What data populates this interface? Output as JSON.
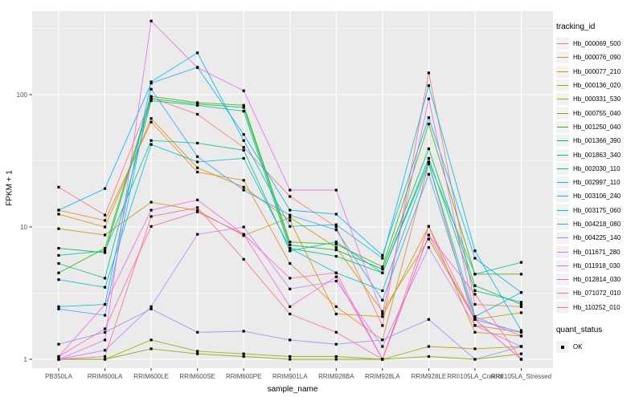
{
  "figure": {
    "y_axis": {
      "label": "FPKM + 1",
      "tick_labels": [
        "1",
        "10",
        "100"
      ]
    },
    "x_axis": {
      "label": "sample_name"
    },
    "legend": {
      "tracking_title": "tracking_id",
      "quant_title": "quant_status",
      "quant_value": "OK"
    },
    "colors": {
      "panel_bg": "#EBEBEB",
      "grid": "#FFFFFF",
      "key_bg": "#F2F2F2",
      "axis_text": "#4D4D4D",
      "tick_mark": "#333333",
      "point": "#000000"
    }
  },
  "chart_data": {
    "type": "line",
    "title": "",
    "xlabel": "sample_name",
    "ylabel": "FPKM + 1",
    "y_scale": "log10",
    "ylim": [
      1,
      400
    ],
    "y_ticks": [
      1,
      10,
      100
    ],
    "grid": "on",
    "legend_position": "right",
    "point_marker": "black-square",
    "quant_status": "OK",
    "categories": [
      "PB350LA",
      "RRIM600LA",
      "RRIM600LE",
      "RRIM600SE",
      "RRIM600PE",
      "RRIM901LA",
      "RRIM928BA",
      "RRIM928LA",
      "RRIM928LE",
      "RRII105LA_Control",
      "RRII105LA_Stressed"
    ],
    "series": [
      {
        "name": "Hb_000069_500",
        "color": "#F8766D",
        "values": [
          20,
          12.3,
          95,
          71,
          40,
          17,
          10,
          1.8,
          146,
          2.6,
          2.5
        ]
      },
      {
        "name": "Hb_000076_090",
        "color": "#EA8331",
        "values": [
          13.4,
          11.2,
          62,
          26,
          22.5,
          5.3,
          2.5,
          1.4,
          30,
          1.8,
          1.6
        ]
      },
      {
        "name": "Hb_000077_210",
        "color": "#D89000",
        "values": [
          12.5,
          10,
          66,
          28,
          20,
          11.2,
          2.2,
          2.1,
          10.1,
          1.6,
          1.5
        ]
      },
      {
        "name": "Hb_000136_020",
        "color": "#C09B00",
        "values": [
          9.7,
          8.7,
          15.4,
          13.3,
          8.6,
          11.8,
          7.0,
          2.3,
          8.1,
          2.0,
          2.25
        ]
      },
      {
        "name": "Hb_000331_530",
        "color": "#A3A500",
        "values": [
          1.0,
          1.0,
          1.4,
          1.15,
          1.1,
          1.05,
          1.05,
          1.0,
          1.25,
          1.2,
          1.25
        ]
      },
      {
        "name": "Hb_000755_040",
        "color": "#7CAE00",
        "values": [
          1.0,
          1.0,
          1.2,
          1.1,
          1.05,
          1.0,
          1.0,
          1.0,
          1.05,
          1.0,
          1.1
        ]
      },
      {
        "name": "Hb_001250_040",
        "color": "#39B600",
        "values": [
          4.5,
          6.9,
          97,
          87,
          83,
          7.7,
          7.4,
          5.0,
          60,
          4.4,
          4.4
        ]
      },
      {
        "name": "Hb_001366_390",
        "color": "#00BB4E",
        "values": [
          6.9,
          6.4,
          93,
          85,
          80,
          7.3,
          6.7,
          4.8,
          39,
          3.6,
          2.6
        ]
      },
      {
        "name": "Hb_001863_340",
        "color": "#00BF7D",
        "values": [
          5.3,
          4.1,
          90,
          83,
          75,
          6.9,
          6.0,
          4.5,
          33,
          3.3,
          2.7
        ]
      },
      {
        "name": "Hb_002030_110",
        "color": "#00C1A3",
        "values": [
          6.1,
          6.6,
          45,
          43,
          38,
          6.6,
          7.7,
          4.5,
          31,
          4.4,
          5.4
        ]
      },
      {
        "name": "Hb_002997_110",
        "color": "#00BFC4",
        "values": [
          4.0,
          3.5,
          42,
          31,
          33,
          6.9,
          4.5,
          3.3,
          30,
          2.1,
          3.2
        ]
      },
      {
        "name": "Hb_003106_240",
        "color": "#00BAE0",
        "values": [
          2.5,
          2.6,
          125,
          207,
          45,
          10.1,
          10.4,
          5.8,
          117,
          6.6,
          1.65
        ]
      },
      {
        "name": "Hb_003175_060",
        "color": "#00B0F6",
        "values": [
          13.4,
          19.5,
          122,
          161,
          50,
          13.4,
          12.5,
          6.1,
          67,
          5.8,
          3.2
        ]
      },
      {
        "name": "Hb_004218_080",
        "color": "#35A2FF",
        "values": [
          2.4,
          2.15,
          110,
          34,
          19,
          12.3,
          9.5,
          2.8,
          25,
          2.0,
          1.6
        ]
      },
      {
        "name": "Hb_004225_140",
        "color": "#9590FF",
        "values": [
          1.3,
          1.6,
          2.4,
          1.6,
          1.63,
          1.4,
          1.3,
          1.4,
          2.0,
          1.0,
          1.25
        ]
      },
      {
        "name": "Hb_011671_280",
        "color": "#C77CFF",
        "values": [
          1.0,
          1.17,
          2.5,
          8.8,
          10,
          3.4,
          3.9,
          1.25,
          7.0,
          1.8,
          1.25
        ]
      },
      {
        "name": "Hb_011918_030",
        "color": "#E76BF3",
        "values": [
          1.0,
          1.4,
          360,
          160,
          107,
          19,
          19,
          2.2,
          93,
          2.1,
          1.5
        ]
      },
      {
        "name": "Hb_012814_030",
        "color": "#FA62DB",
        "values": [
          1.05,
          2.6,
          13.4,
          16,
          8.8,
          2.5,
          4.2,
          1.0,
          8.7,
          2.0,
          1.0
        ]
      },
      {
        "name": "Hb_071072_010",
        "color": "#FF62BC",
        "values": [
          1.05,
          1.7,
          10.1,
          13,
          8.8,
          4.1,
          4.5,
          1.0,
          8.7,
          3.1,
          1.0
        ]
      },
      {
        "name": "Hb_110252_010",
        "color": "#FF6A98",
        "values": [
          1.0,
          1.05,
          12,
          14,
          5.7,
          2.2,
          1.6,
          1.0,
          10.1,
          2.0,
          1.0
        ]
      }
    ]
  }
}
